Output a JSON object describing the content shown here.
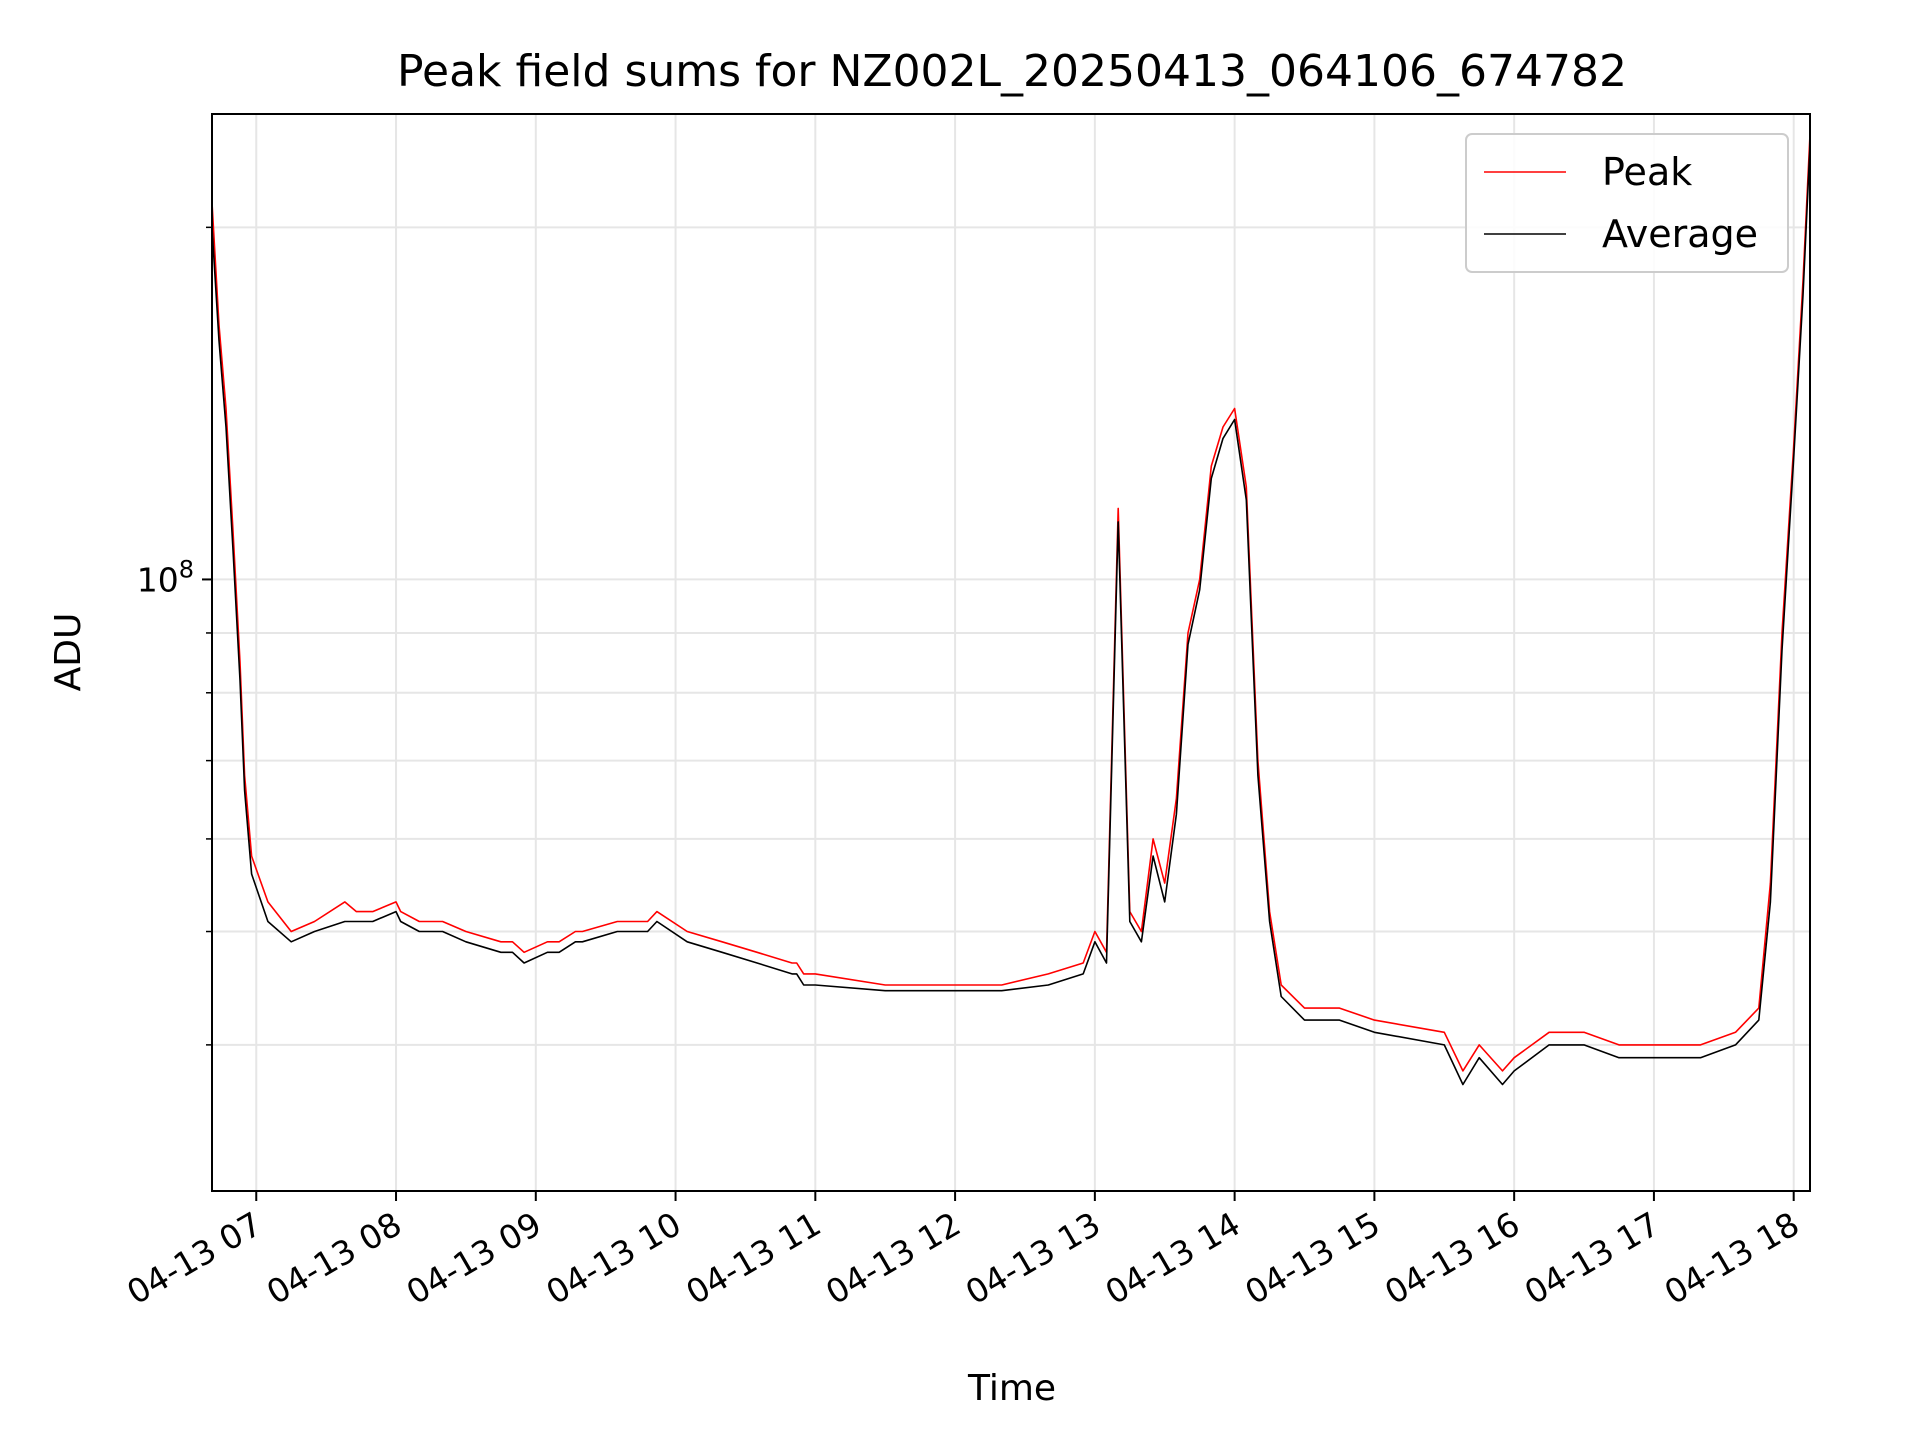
{
  "chart_data": {
    "type": "line",
    "title": "Peak field sums for NZ002L_20250413_064106_674782",
    "xlabel": "Time",
    "ylabel": "ADU",
    "y_scale": "log",
    "grid": true,
    "legend_placement": "top-right",
    "xlim": [
      "2025-04-13 06:41",
      "2025-04-13 18:07"
    ],
    "ylim": [
      30000000,
      250000000
    ],
    "x_ticks": [
      "04-13 07",
      "04-13 08",
      "04-13 09",
      "04-13 10",
      "04-13 11",
      "04-13 12",
      "04-13 13",
      "04-13 14",
      "04-13 15",
      "04-13 16",
      "04-13 17",
      "04-13 18"
    ],
    "y_ticks": [
      {
        "label_base": "10",
        "label_exp": "8",
        "value": 100000000
      }
    ],
    "series": [
      {
        "name": "Peak",
        "color": "#ff0000",
        "x": [
          "2025-04-13 06:41",
          "2025-04-13 06:44",
          "2025-04-13 06:47",
          "2025-04-13 06:50",
          "2025-04-13 06:53",
          "2025-04-13 06:55",
          "2025-04-13 06:58",
          "2025-04-13 07:05",
          "2025-04-13 07:15",
          "2025-04-13 07:25",
          "2025-04-13 07:38",
          "2025-04-13 07:43",
          "2025-04-13 07:50",
          "2025-04-13 08:00",
          "2025-04-13 08:02",
          "2025-04-13 08:10",
          "2025-04-13 08:20",
          "2025-04-13 08:30",
          "2025-04-13 08:45",
          "2025-04-13 08:50",
          "2025-04-13 08:55",
          "2025-04-13 09:05",
          "2025-04-13 09:10",
          "2025-04-13 09:17",
          "2025-04-13 09:20",
          "2025-04-13 09:35",
          "2025-04-13 09:48",
          "2025-04-13 09:52",
          "2025-04-13 10:05",
          "2025-04-13 10:20",
          "2025-04-13 10:35",
          "2025-04-13 10:50",
          "2025-04-13 10:52",
          "2025-04-13 10:55",
          "2025-04-13 11:00",
          "2025-04-13 11:30",
          "2025-04-13 12:00",
          "2025-04-13 12:20",
          "2025-04-13 12:40",
          "2025-04-13 12:55",
          "2025-04-13 13:00",
          "2025-04-13 13:05",
          "2025-04-13 13:10",
          "2025-04-13 13:15",
          "2025-04-13 13:20",
          "2025-04-13 13:25",
          "2025-04-13 13:30",
          "2025-04-13 13:35",
          "2025-04-13 13:40",
          "2025-04-13 13:45",
          "2025-04-13 13:50",
          "2025-04-13 13:55",
          "2025-04-13 14:00",
          "2025-04-13 14:05",
          "2025-04-13 14:10",
          "2025-04-13 14:15",
          "2025-04-13 14:20",
          "2025-04-13 14:30",
          "2025-04-13 14:45",
          "2025-04-13 15:00",
          "2025-04-13 15:30",
          "2025-04-13 15:38",
          "2025-04-13 15:45",
          "2025-04-13 15:55",
          "2025-04-13 16:00",
          "2025-04-13 16:15",
          "2025-04-13 16:30",
          "2025-04-13 16:45",
          "2025-04-13 17:00",
          "2025-04-13 17:20",
          "2025-04-13 17:35",
          "2025-04-13 17:45",
          "2025-04-13 17:50",
          "2025-04-13 17:55",
          "2025-04-13 18:00",
          "2025-04-13 18:04",
          "2025-04-13 18:07"
        ],
        "y": [
          210000000,
          165000000,
          140000000,
          110000000,
          85000000,
          68000000,
          58000000,
          53000000,
          50000000,
          51000000,
          53000000,
          52000000,
          52000000,
          53000000,
          52000000,
          51000000,
          51000000,
          50000000,
          49000000,
          49000000,
          48000000,
          49000000,
          49000000,
          50000000,
          50000000,
          51000000,
          51000000,
          52000000,
          50000000,
          49000000,
          48000000,
          47000000,
          47000000,
          46000000,
          46000000,
          45000000,
          45000000,
          45000000,
          46000000,
          47000000,
          50000000,
          48000000,
          115000000,
          52000000,
          50000000,
          60000000,
          55000000,
          65000000,
          90000000,
          100000000,
          125000000,
          135000000,
          140000000,
          120000000,
          70000000,
          52000000,
          45000000,
          43000000,
          43000000,
          42000000,
          41000000,
          38000000,
          40000000,
          38000000,
          39000000,
          41000000,
          41000000,
          40000000,
          40000000,
          40000000,
          41000000,
          43000000,
          55000000,
          90000000,
          130000000,
          180000000,
          240000000
        ]
      },
      {
        "name": "Average",
        "color": "#000000",
        "x": [
          "2025-04-13 06:41",
          "2025-04-13 06:44",
          "2025-04-13 06:47",
          "2025-04-13 06:50",
          "2025-04-13 06:53",
          "2025-04-13 06:55",
          "2025-04-13 06:58",
          "2025-04-13 07:05",
          "2025-04-13 07:15",
          "2025-04-13 07:25",
          "2025-04-13 07:38",
          "2025-04-13 07:43",
          "2025-04-13 07:50",
          "2025-04-13 08:00",
          "2025-04-13 08:02",
          "2025-04-13 08:10",
          "2025-04-13 08:20",
          "2025-04-13 08:30",
          "2025-04-13 08:45",
          "2025-04-13 08:50",
          "2025-04-13 08:55",
          "2025-04-13 09:05",
          "2025-04-13 09:10",
          "2025-04-13 09:17",
          "2025-04-13 09:20",
          "2025-04-13 09:35",
          "2025-04-13 09:48",
          "2025-04-13 09:52",
          "2025-04-13 10:05",
          "2025-04-13 10:20",
          "2025-04-13 10:35",
          "2025-04-13 10:50",
          "2025-04-13 10:52",
          "2025-04-13 10:55",
          "2025-04-13 11:00",
          "2025-04-13 11:30",
          "2025-04-13 12:00",
          "2025-04-13 12:20",
          "2025-04-13 12:40",
          "2025-04-13 12:55",
          "2025-04-13 13:00",
          "2025-04-13 13:05",
          "2025-04-13 13:10",
          "2025-04-13 13:15",
          "2025-04-13 13:20",
          "2025-04-13 13:25",
          "2025-04-13 13:30",
          "2025-04-13 13:35",
          "2025-04-13 13:40",
          "2025-04-13 13:45",
          "2025-04-13 13:50",
          "2025-04-13 13:55",
          "2025-04-13 14:00",
          "2025-04-13 14:05",
          "2025-04-13 14:10",
          "2025-04-13 14:15",
          "2025-04-13 14:20",
          "2025-04-13 14:30",
          "2025-04-13 14:45",
          "2025-04-13 15:00",
          "2025-04-13 15:30",
          "2025-04-13 15:38",
          "2025-04-13 15:45",
          "2025-04-13 15:55",
          "2025-04-13 16:00",
          "2025-04-13 16:15",
          "2025-04-13 16:30",
          "2025-04-13 16:45",
          "2025-04-13 17:00",
          "2025-04-13 17:20",
          "2025-04-13 17:35",
          "2025-04-13 17:45",
          "2025-04-13 17:50",
          "2025-04-13 17:55",
          "2025-04-13 18:00",
          "2025-04-13 18:04",
          "2025-04-13 18:07"
        ],
        "y": [
          200000000,
          160000000,
          135000000,
          106000000,
          82000000,
          66000000,
          56000000,
          51000000,
          49000000,
          50000000,
          51000000,
          51000000,
          51000000,
          52000000,
          51000000,
          50000000,
          50000000,
          49000000,
          48000000,
          48000000,
          47000000,
          48000000,
          48000000,
          49000000,
          49000000,
          50000000,
          50000000,
          51000000,
          49000000,
          48000000,
          47000000,
          46000000,
          46000000,
          45000000,
          45000000,
          44500000,
          44500000,
          44500000,
          45000000,
          46000000,
          49000000,
          47000000,
          112000000,
          51000000,
          49000000,
          58000000,
          53000000,
          63000000,
          88000000,
          98000000,
          122000000,
          132000000,
          137000000,
          117000000,
          68000000,
          51000000,
          44000000,
          42000000,
          42000000,
          41000000,
          40000000,
          37000000,
          39000000,
          37000000,
          38000000,
          40000000,
          40000000,
          39000000,
          39000000,
          39000000,
          40000000,
          42000000,
          53000000,
          87000000,
          127000000,
          175000000,
          235000000
        ]
      }
    ]
  }
}
